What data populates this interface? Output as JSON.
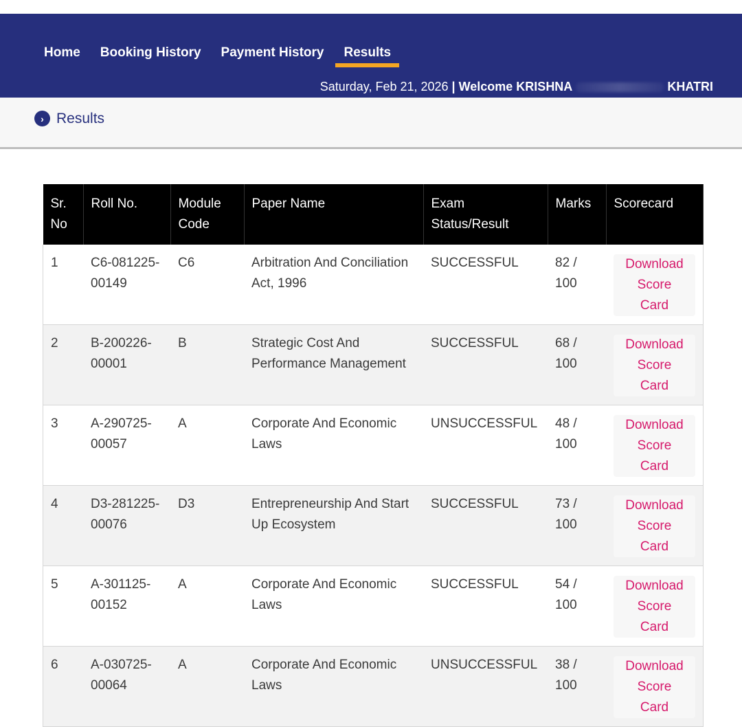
{
  "nav": {
    "items": [
      {
        "label": "Home"
      },
      {
        "label": "Booking History"
      },
      {
        "label": "Payment History"
      },
      {
        "label": "Results"
      }
    ],
    "date": "Saturday, Feb 21, 2026",
    "separator": "|",
    "welcome_prefix": "Welcome KRISHNA",
    "welcome_suffix": "KHATRI"
  },
  "page_title": "Results",
  "table": {
    "headers": [
      "Sr. No",
      "Roll No.",
      "Module Code",
      "Paper Name",
      "Exam Status/Result",
      "Marks",
      "Scorecard"
    ],
    "rows": [
      {
        "sr": "1",
        "roll": "C6-081225-00149",
        "module": "C6",
        "paper": "Arbitration And Conciliation Act, 1996",
        "status": "SUCCESSFUL",
        "marks": "82 / 100",
        "scorecard": "Download Score Card"
      },
      {
        "sr": "2",
        "roll": "B-200226-00001",
        "module": "B",
        "paper": "Strategic Cost And Performance Management",
        "status": "SUCCESSFUL",
        "marks": "68 / 100",
        "scorecard": "Download Score Card"
      },
      {
        "sr": "3",
        "roll": "A-290725-00057",
        "module": "A",
        "paper": "Corporate And Economic Laws",
        "status": "UNSUCCESSFUL",
        "marks": "48 / 100",
        "scorecard": "Download Score Card"
      },
      {
        "sr": "4",
        "roll": "D3-281225-00076",
        "module": "D3",
        "paper": "Entrepreneurship And Start Up Ecosystem",
        "status": "SUCCESSFUL",
        "marks": "73 / 100",
        "scorecard": "Download Score Card"
      },
      {
        "sr": "5",
        "roll": "A-301125-00152",
        "module": "A",
        "paper": "Corporate And Economic Laws",
        "status": "SUCCESSFUL",
        "marks": "54 / 100",
        "scorecard": "Download Score Card"
      },
      {
        "sr": "6",
        "roll": "A-030725-00064",
        "module": "A",
        "paper": "Corporate And Economic Laws",
        "status": "UNSUCCESSFUL",
        "marks": "38 / 100",
        "scorecard": "Download Score Card"
      }
    ]
  }
}
